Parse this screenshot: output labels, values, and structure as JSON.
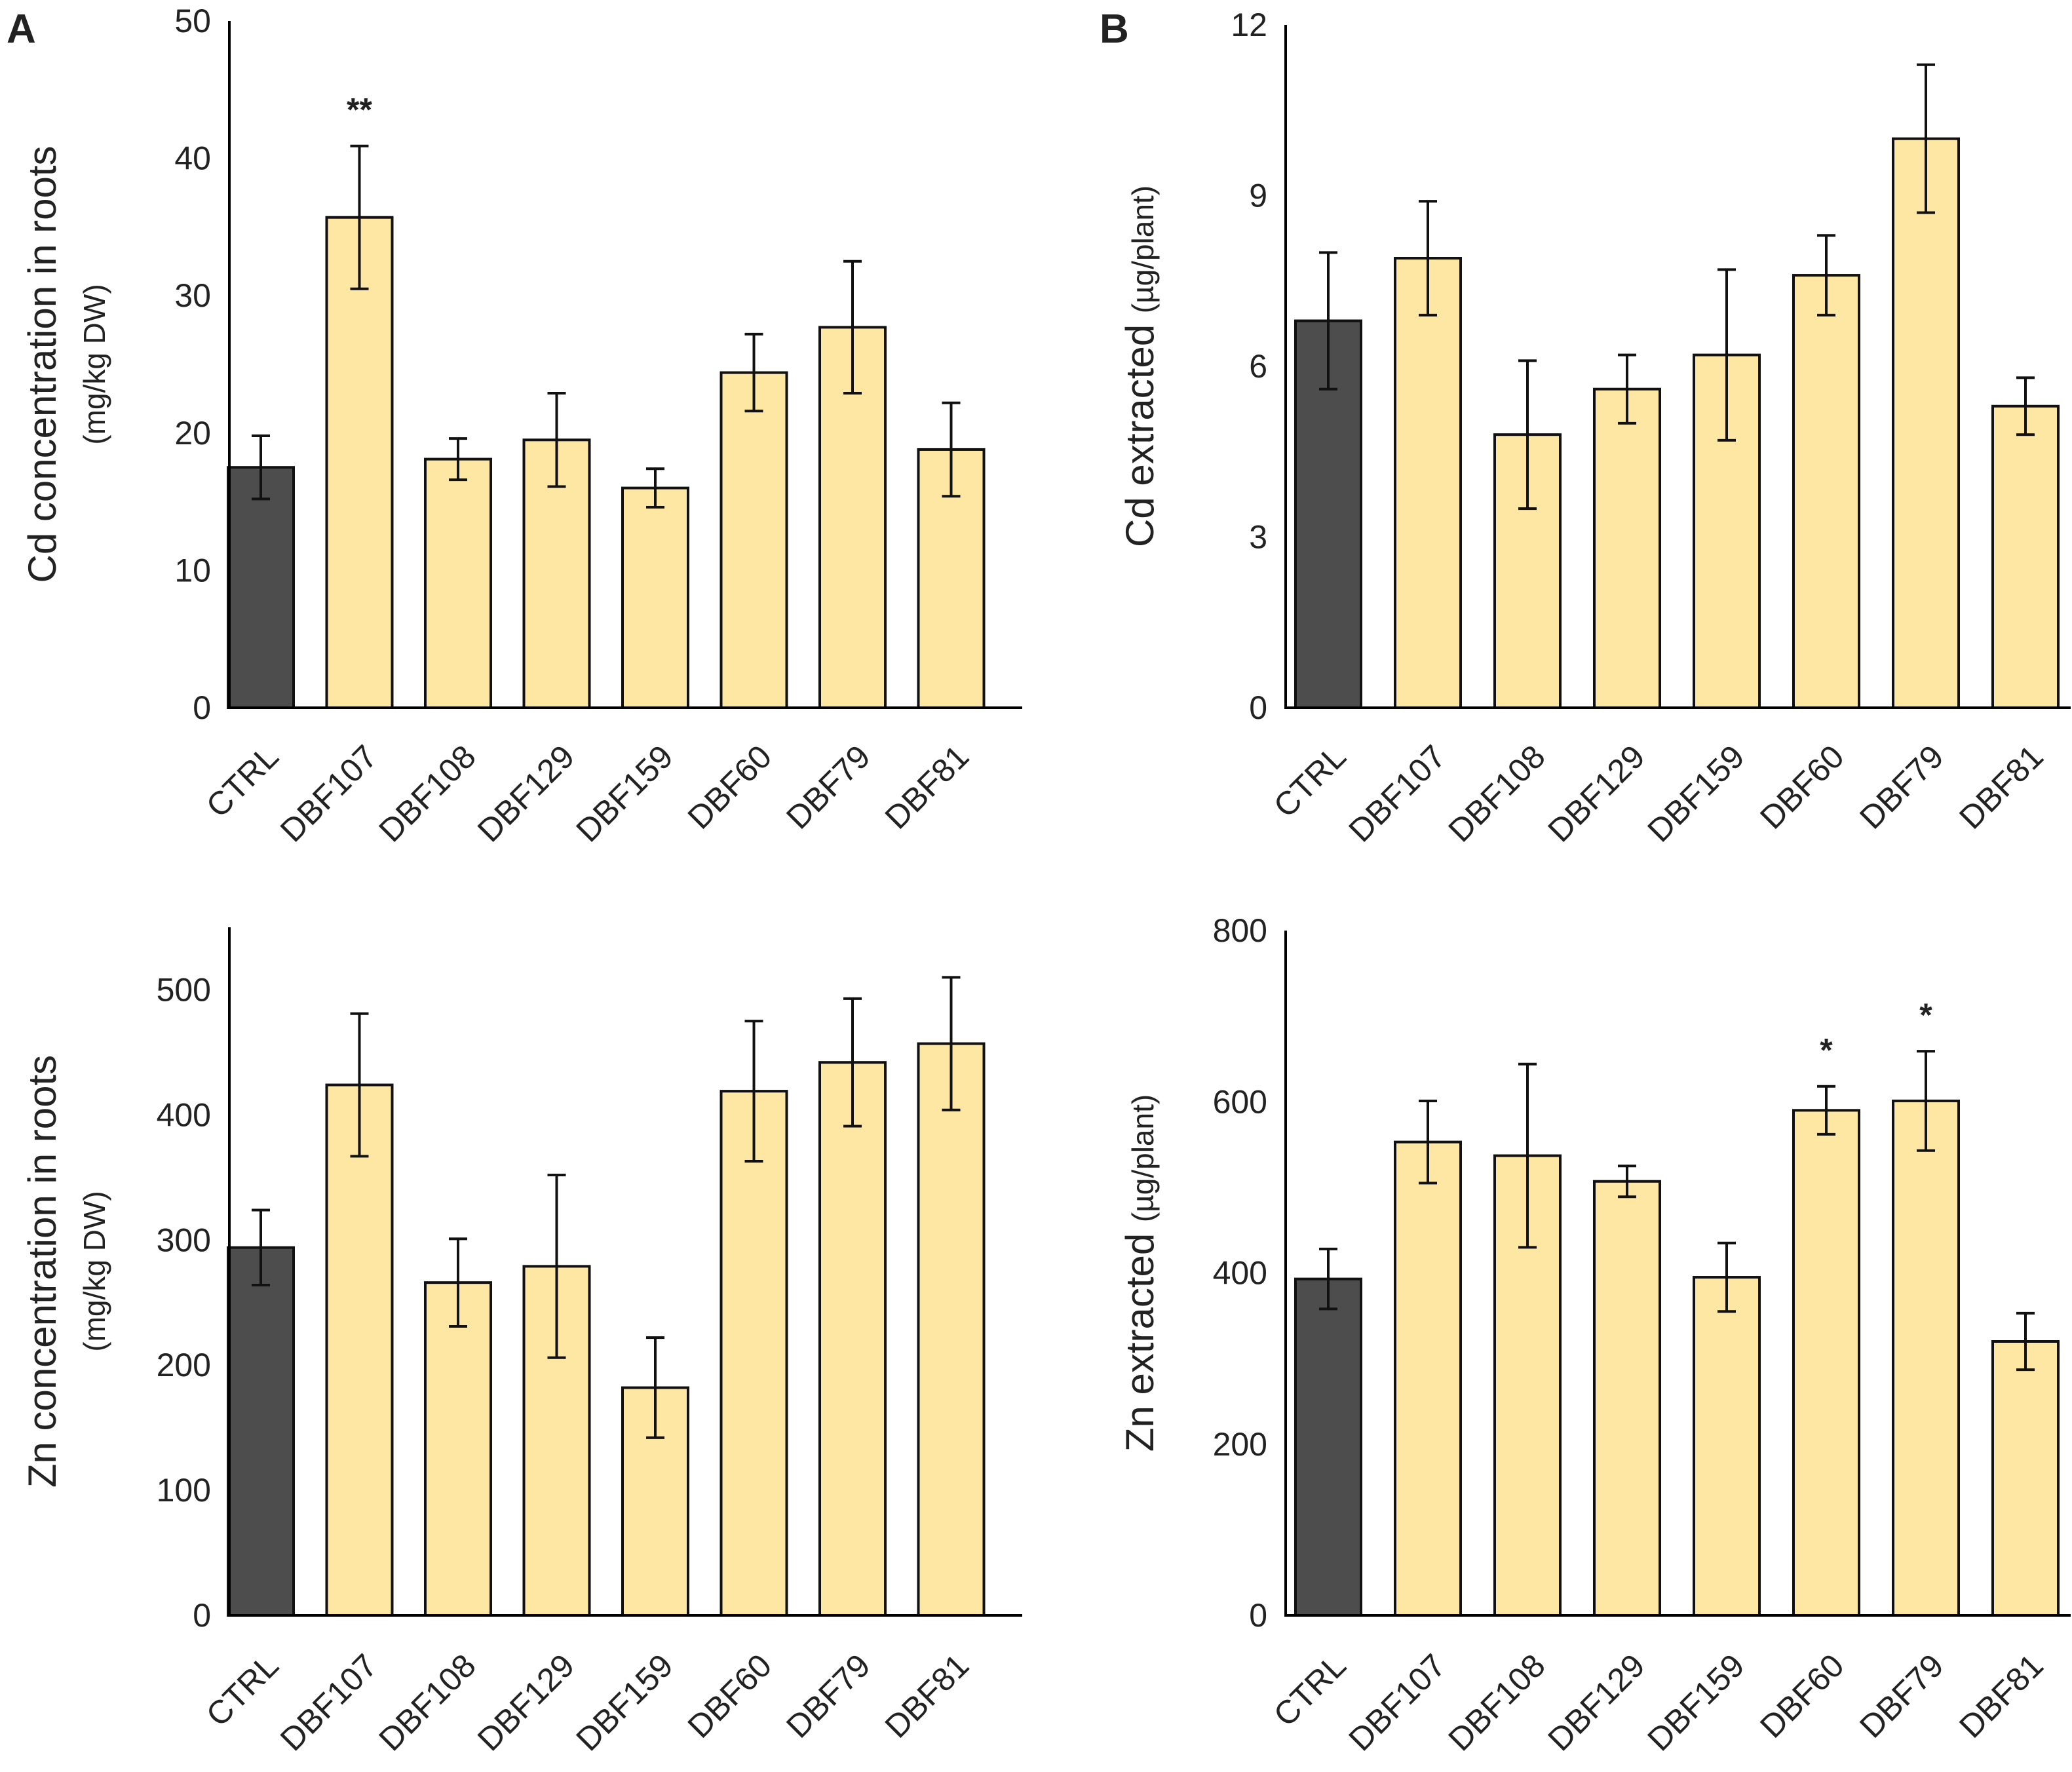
{
  "figure": {
    "panel_letters": [
      "A",
      "B"
    ]
  },
  "colors": {
    "control": "#4d4d4d",
    "treatment": "#fde7a2",
    "bar_stroke": "#111111"
  },
  "chart_data": [
    {
      "id": "cd-roots",
      "type": "bar",
      "panel_label": "A",
      "title": "",
      "ylabel": "Cd concentration in roots",
      "ylabel_unit": "(mg/kg DW)",
      "xlabel": "",
      "categories": [
        "CTRL",
        "DBF107",
        "DBF108",
        "DBF129",
        "DBF159",
        "DBF60",
        "DBF79",
        "DBF81"
      ],
      "values": [
        17.5,
        35.7,
        18.1,
        19.5,
        16.0,
        24.4,
        27.7,
        18.8
      ],
      "errors": [
        2.3,
        5.2,
        1.5,
        3.4,
        1.4,
        2.8,
        4.8,
        3.4
      ],
      "significance": [
        "",
        "**",
        "",
        "",
        "",
        "",
        "",
        ""
      ],
      "ylim": [
        0,
        50
      ],
      "yticks": [
        0,
        10,
        20,
        30,
        40,
        50
      ]
    },
    {
      "id": "cd-extracted",
      "type": "bar",
      "panel_label": "B",
      "title": "",
      "ylabel": "Cd extracted",
      "ylabel_unit": "(µg/plant)",
      "xlabel": "",
      "categories": [
        "CTRL",
        "DBF107",
        "DBF108",
        "DBF129",
        "DBF159",
        "DBF60",
        "DBF79",
        "DBF81"
      ],
      "values": [
        6.8,
        7.9,
        4.8,
        5.6,
        6.2,
        7.6,
        10.0,
        5.3
      ],
      "errors": [
        1.2,
        1.0,
        1.3,
        0.6,
        1.5,
        0.7,
        1.3,
        0.5
      ],
      "significance": [
        "",
        "",
        "",
        "",
        "",
        "",
        "",
        ""
      ],
      "ylim": [
        0,
        12
      ],
      "yticks": [
        0,
        3,
        6,
        9,
        12
      ]
    },
    {
      "id": "zn-roots",
      "type": "bar",
      "panel_label": "",
      "title": "",
      "ylabel": "Zn concentration in roots",
      "ylabel_unit": "(mg/kg DW)",
      "xlabel": "",
      "categories": [
        "CTRL",
        "DBF107",
        "DBF108",
        "DBF129",
        "DBF159",
        "DBF60",
        "DBF79",
        "DBF81"
      ],
      "values": [
        294,
        424,
        266,
        279,
        182,
        419,
        442,
        457
      ],
      "errors": [
        30,
        57,
        35,
        73,
        40,
        56,
        51,
        53
      ],
      "significance": [
        "",
        "",
        "",
        "",
        "",
        "",
        "",
        ""
      ],
      "ylim": [
        0,
        550
      ],
      "yticks": [
        0,
        100,
        200,
        300,
        400,
        500
      ]
    },
    {
      "id": "zn-extracted",
      "type": "bar",
      "panel_label": "",
      "title": "",
      "ylabel": "Zn extracted",
      "ylabel_unit": "(µg/plant)",
      "xlabel": "",
      "categories": [
        "CTRL",
        "DBF107",
        "DBF108",
        "DBF129",
        "DBF159",
        "DBF60",
        "DBF79",
        "DBF81"
      ],
      "values": [
        393,
        553,
        537,
        507,
        395,
        590,
        601,
        320
      ],
      "errors": [
        35,
        48,
        107,
        18,
        40,
        28,
        58,
        33
      ],
      "significance": [
        "",
        "",
        "",
        "",
        "",
        "*",
        "*",
        ""
      ],
      "ylim": [
        0,
        800
      ],
      "yticks": [
        0,
        200,
        400,
        600,
        800
      ]
    }
  ]
}
